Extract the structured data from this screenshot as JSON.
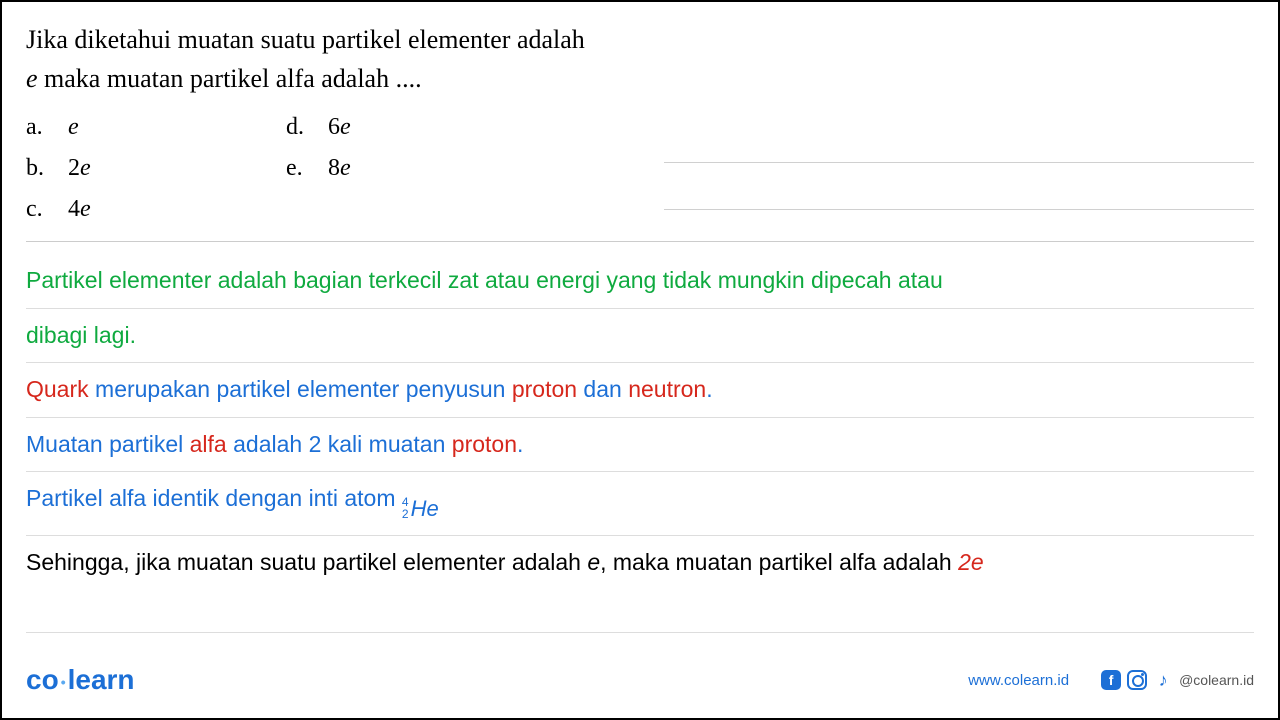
{
  "question": {
    "line1_pre": "Jika diketahui muatan suatu partikel elementer adalah",
    "line2_italic": "e",
    "line2_rest": " maka muatan partikel alfa adalah ...."
  },
  "options": {
    "a": {
      "label": "a.",
      "coef": "",
      "var": "e"
    },
    "b": {
      "label": "b.",
      "coef": "2",
      "var": "e"
    },
    "c": {
      "label": "c.",
      "coef": "4",
      "var": "e"
    },
    "d": {
      "label": "d.",
      "coef": "6",
      "var": "e"
    },
    "e": {
      "label": "e.",
      "coef": "8",
      "var": "e"
    }
  },
  "explanation": {
    "line1": "Partikel elementer adalah bagian terkecil zat atau energi yang tidak mungkin dipecah atau",
    "line1b": "dibagi lagi.",
    "line2_quark": "Quark",
    "line2_mid": " merupakan partikel elementer penyusun ",
    "line2_proton": "proton",
    "line2_dan": " dan ",
    "line2_neutron": "neutron",
    "line2_period": ".",
    "line3_pre": "Muatan partikel ",
    "line3_alfa": "alfa",
    "line3_mid": " adalah 2 kali muatan ",
    "line3_proton": "proton",
    "line3_period": ".",
    "line4_pre": "Partikel alfa identik dengan inti atom ",
    "line4_mass": "4",
    "line4_atomic": "2",
    "line4_symbol": "He",
    "line5_pre": "Sehingga, jika muatan suatu partikel elementer adalah ",
    "line5_e": "e",
    "line5_mid": ", maka muatan partikel alfa adalah ",
    "line5_answer": "2e"
  },
  "footer": {
    "logo_co": "co",
    "logo_learn": "learn",
    "website": "www.colearn.id",
    "handle": "@colearn.id"
  },
  "colors": {
    "green": "#0faa3f",
    "blue": "#1c6fd6",
    "red": "#d6271c",
    "black": "#000000",
    "border": "#cccccc"
  }
}
